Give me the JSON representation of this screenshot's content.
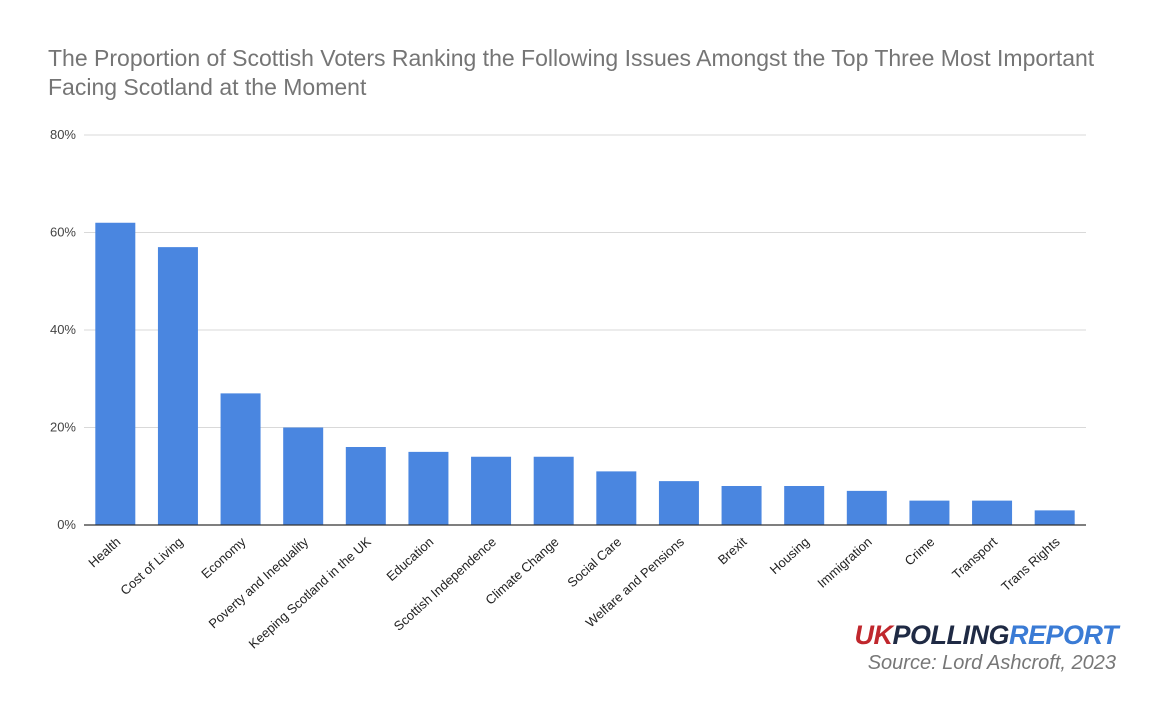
{
  "chart_data": {
    "type": "bar",
    "title": "The Proportion of Scottish Voters Ranking the Following Issues Amongst the Top Three Most Important Facing Scotland at the Moment",
    "categories": [
      "Health",
      "Cost of Living",
      "Economy",
      "Poverty and Inequality",
      "Keeping Scotland in the UK",
      "Education",
      "Scottish Independence",
      "Climate Change",
      "Social Care",
      "Welfare and Pensions",
      "Brexit",
      "Housing",
      "Immigration",
      "Crime",
      "Transport",
      "Trans Rights"
    ],
    "values": [
      62,
      57,
      27,
      20,
      16,
      15,
      14,
      14,
      11,
      9,
      8,
      8,
      7,
      5,
      5,
      3
    ],
    "ylim": [
      0,
      80
    ],
    "yticks": [
      "0%",
      "20%",
      "40%",
      "60%",
      "80%"
    ],
    "ytick_values": [
      0,
      20,
      40,
      60,
      80
    ],
    "grid": true,
    "bar_color": "#4a86e0",
    "xlabel": "",
    "ylabel": ""
  },
  "branding": {
    "logo_uk": "UK",
    "logo_polling": "POLLING",
    "logo_report": "REPORT",
    "source": "Source: Lord Ashcroft, 2023"
  }
}
